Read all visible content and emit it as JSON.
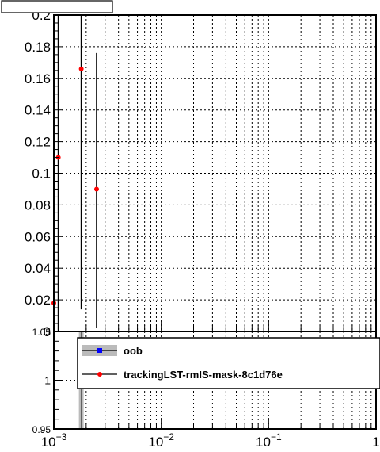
{
  "chart_data": [
    {
      "type": "scatter",
      "panel": "top",
      "x_scale": "log",
      "xlim": [
        0.001,
        1
      ],
      "ylim": [
        0,
        0.2
      ],
      "y_ticks": [
        "0",
        "0.02",
        "0.04",
        "0.06",
        "0.08",
        "0.1",
        "0.12",
        "0.14",
        "0.16",
        "0.18",
        "0.2"
      ],
      "grid": true,
      "series": [
        {
          "name": "trackingLST-rmIS-mask-8c1d76e",
          "color": "#ff0000",
          "points": [
            {
              "x": 0.001,
              "y": 0.018,
              "ylow": 0.0,
              "yhigh": 0.06
            },
            {
              "x": 0.0011,
              "y": 0.11,
              "ylow": 0.0,
              "yhigh": 0.2
            },
            {
              "x": 0.0018,
              "y": 0.166,
              "ylow": 0.014,
              "yhigh": 0.2
            },
            {
              "x": 0.0025,
              "y": 0.09,
              "ylow": 0.002,
              "yhigh": 0.176
            }
          ]
        }
      ],
      "title_box_text": ""
    },
    {
      "type": "scatter",
      "panel": "bottom",
      "x_scale": "log",
      "xlim": [
        0.001,
        1
      ],
      "ylim": [
        0.95,
        1.05
      ],
      "y_ticks": [
        "0.95",
        "1",
        "1.05"
      ],
      "x_tick_labels": [
        {
          "base": "10",
          "exp": "−3"
        },
        {
          "base": "10",
          "exp": "−2"
        },
        {
          "base": "10",
          "exp": "−1"
        },
        {
          "base": "1",
          "exp": ""
        }
      ],
      "grid": true,
      "legend": {
        "placement": "top-right",
        "entries": [
          {
            "label": "oob",
            "color": "#0000ff",
            "band": "#bbbbbb"
          },
          {
            "label": "trackingLST-rmIS-mask-8c1d76e",
            "color": "#ff0000"
          }
        ]
      }
    }
  ]
}
